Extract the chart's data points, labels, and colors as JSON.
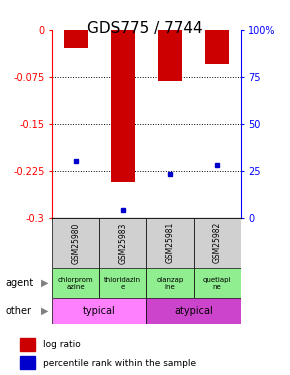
{
  "title": "GDS775 / 7744",
  "samples": [
    "GSM25980",
    "GSM25983",
    "GSM25981",
    "GSM25982"
  ],
  "log_ratios": [
    -0.028,
    -0.243,
    -0.082,
    -0.055
  ],
  "percentile_ranks": [
    0.3,
    0.04,
    0.23,
    0.28
  ],
  "ylim_left": [
    -0.3,
    0.0
  ],
  "ylim_right": [
    0,
    100
  ],
  "yticks_left": [
    0,
    -0.075,
    -0.15,
    -0.225,
    -0.3
  ],
  "yticks_right": [
    100,
    75,
    50,
    25,
    0
  ],
  "agents": [
    "chlorprom\nazine",
    "thioridazin\ne",
    "olanzap\nine",
    "quetiapi\nne"
  ],
  "agent_colors": [
    "#90EE90",
    "#90EE90",
    "#90EE90",
    "#90EE90"
  ],
  "typical_color": "#FF80FF",
  "atypical_color": "#CC44CC",
  "bar_color": "#CC0000",
  "marker_color": "#0000CC",
  "label_bg_color": "#D0D0D0",
  "title_fontsize": 11,
  "tick_fontsize": 7,
  "bar_width": 0.5
}
